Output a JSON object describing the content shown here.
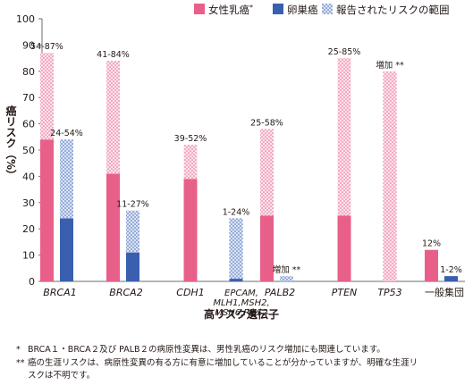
{
  "chart_data": {
    "type": "bar",
    "ylabel": "癌リスク（%）",
    "xlabel": "高リスク遺伝子",
    "ylim": [
      0,
      100
    ],
    "yticks": [
      0,
      10,
      20,
      30,
      40,
      50,
      60,
      70,
      80,
      90,
      100
    ],
    "grid": false,
    "legend_position": "top-right",
    "legend": [
      {
        "key": "breast",
        "label": "女性乳癌",
        "mark": "*",
        "color": "#e8608a",
        "pattern": "solid"
      },
      {
        "key": "ovarian",
        "label": "卵巣癌",
        "mark": "",
        "color": "#3a5faf",
        "pattern": "solid"
      },
      {
        "key": "range",
        "label": "報告されたリスクの範囲",
        "mark": "",
        "color": "#a9bde5",
        "pattern": "dotted"
      }
    ],
    "colors": {
      "breast": "#e8608a",
      "breast_range_bg": "#fbe3eb",
      "breast_range_dot": "#e8608a",
      "ovarian": "#3a5faf",
      "ovarian_range_bg": "#dbe4f5",
      "ovarian_range_dot": "#3a5faf",
      "axis": "#6d6d6d"
    },
    "categories": [
      {
        "label": "BRCA1",
        "italic": true,
        "bars": [
          {
            "series": "breast",
            "value": 54,
            "range": [
              54,
              87
            ],
            "label": "54-87%"
          },
          {
            "series": "ovarian",
            "value": 24,
            "range": [
              24,
              54
            ],
            "label": "24-54%"
          }
        ]
      },
      {
        "label": "BRCA2",
        "italic": true,
        "bars": [
          {
            "series": "breast",
            "value": 41,
            "range": [
              41,
              84
            ],
            "label": "41-84%"
          },
          {
            "series": "ovarian",
            "value": 11,
            "range": [
              11,
              27
            ],
            "label": "11-27%"
          }
        ]
      },
      {
        "label": "CDH1",
        "italic": true,
        "bars": [
          {
            "series": "breast",
            "value": 39,
            "range": [
              39,
              52
            ],
            "label": "39-52%"
          }
        ]
      },
      {
        "label": "EPCAM,\nMLH1,MSH2,\nMSH6,PMS2",
        "italic": true,
        "bars": [
          {
            "series": "ovarian",
            "value": 1,
            "range": [
              1,
              24
            ],
            "label": "1-24%"
          }
        ]
      },
      {
        "label": "PALB2",
        "italic": true,
        "bars": [
          {
            "series": "breast",
            "value": 25,
            "range": [
              25,
              58
            ],
            "label": "25-58%"
          },
          {
            "series": "ovarian",
            "value": 0,
            "range": [
              0,
              2
            ],
            "label": "増加 **"
          }
        ]
      },
      {
        "label": "PTEN",
        "italic": true,
        "bars": [
          {
            "series": "breast",
            "value": 25,
            "range": [
              25,
              85
            ],
            "label": "25-85%"
          }
        ]
      },
      {
        "label": "TP53",
        "italic": true,
        "bars": [
          {
            "series": "breast",
            "value": 0,
            "range": [
              0,
              80
            ],
            "label": "増加 **"
          }
        ]
      },
      {
        "label": "一般集団",
        "italic": false,
        "bars": [
          {
            "series": "breast",
            "value": 12,
            "label": "12%"
          },
          {
            "series": "ovarian",
            "value": 2,
            "label": "1-2%"
          }
        ]
      }
    ]
  },
  "footnotes": [
    {
      "mark": "*",
      "text": "BRCA１・BRCA２及び PALB２の病原性変異は、男性乳癌のリスク増加にも関連しています。"
    },
    {
      "mark": "**",
      "text": "癌の生涯リスクは、病原性変異の有る方に有意に増加していることが分かっていますが、明確な生涯リ"
    },
    {
      "mark": "",
      "text": "スクは不明です。"
    }
  ]
}
